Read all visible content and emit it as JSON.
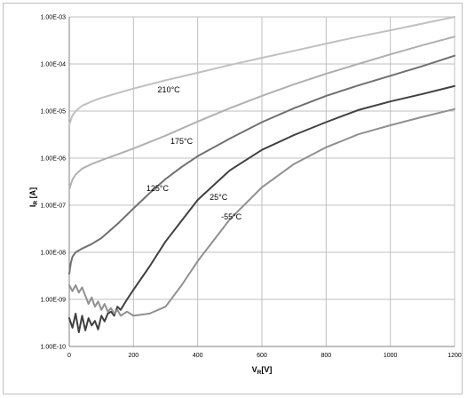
{
  "chart_data": {
    "type": "line",
    "title": "",
    "xlabel": "V",
    "xlabel_sub": "R",
    "xlabel_unit": "[V]",
    "ylabel": "I",
    "ylabel_sub": "R",
    "ylabel_unit": " [A]",
    "x_scale": "linear",
    "y_scale": "log",
    "xlim": [
      0,
      1200
    ],
    "ylim": [
      1e-10,
      0.001
    ],
    "grid": true,
    "legend": "none",
    "x_ticks": [
      "0",
      "200",
      "400",
      "600",
      "800",
      "1000",
      "1200"
    ],
    "y_ticks": [
      "1.00E-10",
      "1.00E-09",
      "1.00E-08",
      "1.00E-07",
      "1.00E-06",
      "1.00E-05",
      "1.00E-04",
      "1.00E-03"
    ],
    "series": [
      {
        "name": "210°C",
        "color": "#c0c0c0",
        "label_at": [
          310,
          2.5e-05
        ],
        "x": [
          0,
          5,
          10,
          20,
          40,
          70,
          100,
          150,
          200,
          300,
          400,
          500,
          600,
          700,
          800,
          900,
          1000,
          1100,
          1200
        ],
        "y": [
          5e-06,
          6.5e-06,
          8e-06,
          1e-05,
          1.3e-05,
          1.6e-05,
          1.9e-05,
          2.4e-05,
          3e-05,
          4.5e-05,
          6.5e-05,
          9.5e-05,
          0.000135,
          0.00019,
          0.00027,
          0.00038,
          0.00052,
          0.00072,
          0.001
        ]
      },
      {
        "name": "175°C",
        "color": "#b0b0b0",
        "label_at": [
          350,
          2e-06
        ],
        "x": [
          0,
          5,
          10,
          20,
          40,
          70,
          100,
          150,
          200,
          250,
          300,
          400,
          500,
          600,
          700,
          800,
          900,
          1000,
          1100,
          1200
        ],
        "y": [
          2.2e-07,
          2.8e-07,
          3.5e-07,
          4.5e-07,
          6e-07,
          7.5e-07,
          9e-07,
          1.2e-06,
          1.6e-06,
          2.2e-06,
          3e-06,
          6e-06,
          1.15e-05,
          2.1e-05,
          3.7e-05,
          6.2e-05,
          0.0001,
          0.00016,
          0.00025,
          0.00038
        ]
      },
      {
        "name": "125°C",
        "color": "#707070",
        "label_at": [
          275,
          2e-07
        ],
        "x": [
          0,
          5,
          10,
          20,
          40,
          70,
          100,
          150,
          200,
          250,
          300,
          350,
          400,
          500,
          600,
          700,
          800,
          900,
          1000,
          1100,
          1200
        ],
        "y": [
          3.5e-09,
          6e-09,
          8e-09,
          1e-08,
          1.2e-08,
          1.5e-08,
          2e-08,
          4e-08,
          8.5e-08,
          1.8e-07,
          3.6e-07,
          6.5e-07,
          1.1e-06,
          2.6e-06,
          5.8e-06,
          1.15e-05,
          2.1e-05,
          3.5e-05,
          5.6e-05,
          9e-05,
          0.00015
        ]
      },
      {
        "name": "25°C",
        "color": "#404040",
        "label_at": [
          465,
          1.3e-07
        ],
        "x": [
          0,
          10,
          20,
          30,
          40,
          50,
          60,
          70,
          80,
          90,
          100,
          110,
          120,
          130,
          140,
          150,
          160,
          180,
          200,
          250,
          300,
          400,
          500,
          600,
          700,
          800,
          900,
          1000,
          1100,
          1200
        ],
        "y": [
          4e-10,
          2.5e-10,
          5e-10,
          2e-10,
          4.5e-10,
          2.2e-10,
          4e-10,
          2.8e-10,
          3.5e-10,
          2.3e-10,
          4.5e-10,
          3.4e-10,
          5e-10,
          5.5e-10,
          4.5e-10,
          7e-10,
          6e-10,
          1e-09,
          1.6e-09,
          5e-09,
          1.7e-08,
          1.3e-07,
          5.5e-07,
          1.5e-06,
          3.1e-06,
          5.8e-06,
          1.05e-05,
          1.6e-05,
          2.3e-05,
          3.4e-05
        ]
      },
      {
        "name": "-55°C",
        "color": "#909090",
        "label_at": [
          505,
          5e-08
        ],
        "x": [
          0,
          10,
          20,
          30,
          40,
          50,
          60,
          70,
          80,
          90,
          100,
          110,
          120,
          130,
          140,
          150,
          160,
          180,
          200,
          250,
          300,
          350,
          400,
          500,
          600,
          700,
          800,
          900,
          1000,
          1100,
          1200
        ],
        "y": [
          2e-09,
          1.5e-09,
          2e-09,
          1.4e-09,
          1.8e-09,
          1.2e-09,
          8e-10,
          1.1e-09,
          7e-10,
          9e-10,
          6e-10,
          8e-10,
          5.5e-10,
          6.5e-10,
          5e-10,
          6e-10,
          4.5e-10,
          5.5e-10,
          4.5e-10,
          5e-10,
          7e-10,
          2e-09,
          6.5e-09,
          5e-08,
          2.4e-07,
          7.5e-07,
          1.7e-06,
          3.2e-06,
          5e-06,
          7.5e-06,
          1.1e-05
        ]
      }
    ]
  }
}
